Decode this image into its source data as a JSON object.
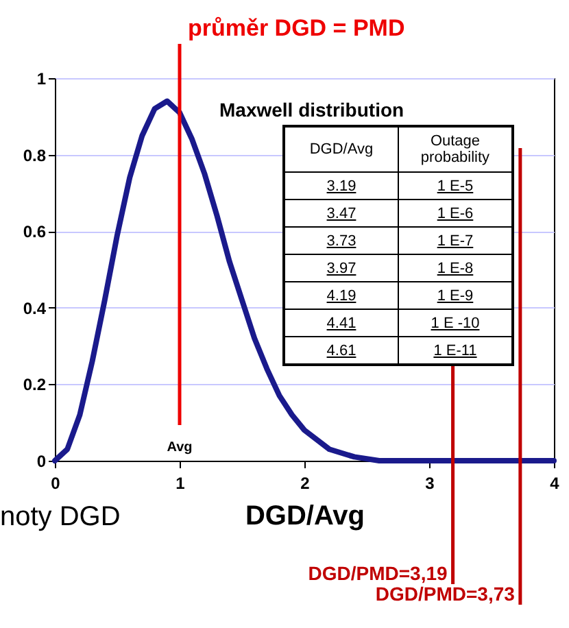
{
  "chart_data": [
    {
      "type": "line",
      "xlabel": "DGD/Avg",
      "x": [
        0,
        0.1,
        0.2,
        0.3,
        0.4,
        0.5,
        0.6,
        0.7,
        0.8,
        0.9,
        1.0,
        1.1,
        1.2,
        1.3,
        1.4,
        1.5,
        1.6,
        1.7,
        1.8,
        1.9,
        2.0,
        2.2,
        2.4,
        2.6,
        3.0,
        4.0
      ],
      "series": [
        {
          "color": "#1a1a8c",
          "values": [
            0,
            0.03,
            0.12,
            0.26,
            0.42,
            0.59,
            0.74,
            0.85,
            0.92,
            0.94,
            0.91,
            0.84,
            0.75,
            0.64,
            0.52,
            0.42,
            0.32,
            0.24,
            0.17,
            0.12,
            0.08,
            0.03,
            0.01,
            0,
            0,
            0
          ]
        }
      ],
      "xlim": [
        0,
        4
      ],
      "xticks": [
        0,
        1,
        2,
        3,
        4
      ],
      "ylim": [
        0,
        1
      ],
      "yticks": [
        0,
        0.2,
        0.4,
        0.6,
        0.8,
        1
      ],
      "grid": "y",
      "marker": "none",
      "line_style": "solid",
      "ref_lines": [
        {
          "axis": "x",
          "value": 1,
          "label": "průměr DGD = PMD",
          "color": "#ee0000"
        },
        {
          "axis": "x",
          "value": 3.19,
          "label": "DGD/PMD=3,19",
          "color": "#c00000"
        },
        {
          "axis": "x",
          "value": 3.73,
          "label": "DGD/PMD=3,73",
          "color": "#c00000"
        }
      ],
      "annotations": [
        "Avg",
        "noty DGD"
      ]
    },
    {
      "type": "other",
      "title": "Maxwell distribution",
      "annotations": [
        "DGD/Avg",
        "Outage probability",
        "3.19",
        "1 E-5",
        "3.47",
        "1 E-6",
        "3.73",
        "1 E-7",
        "3.97",
        "1 E-8",
        "4.19",
        "1 E-9",
        "4.41",
        "1 E -10",
        "4.61",
        "1 E-11"
      ]
    }
  ]
}
